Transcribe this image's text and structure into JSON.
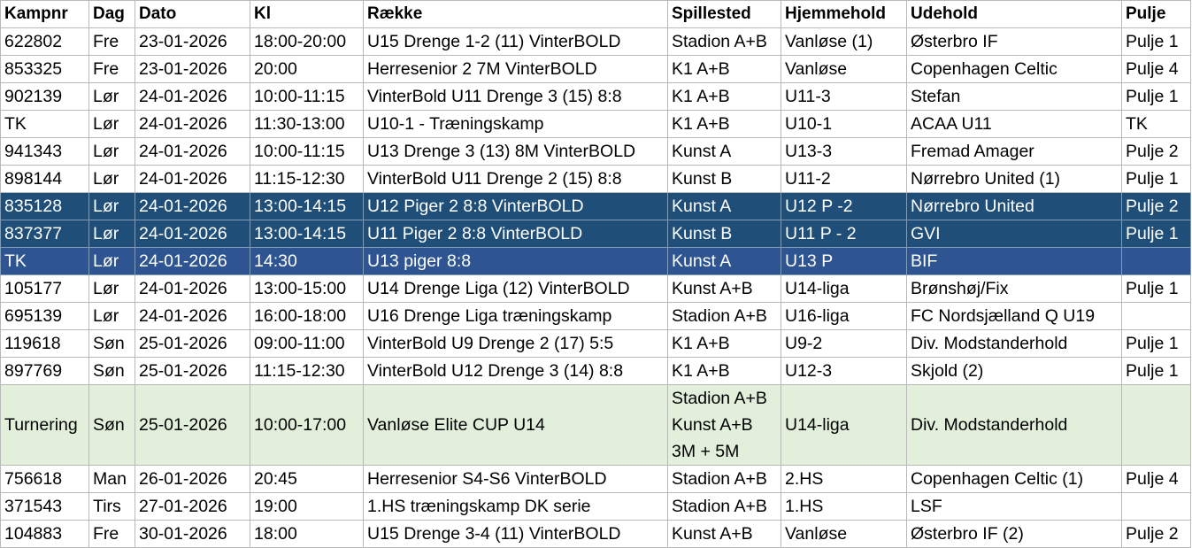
{
  "columns": [
    "Kampnr",
    "Dag",
    "Dato",
    "Kl",
    "Række",
    "Spillested",
    "Hjemmehold",
    "Udehold",
    "Pulje"
  ],
  "rows": [
    {
      "kampnr": "622802",
      "dag": "Fre",
      "dato": "23-01-2026",
      "kl": "18:00-20:00",
      "raekke": "U15 Drenge 1-2 (11) VinterBOLD",
      "spillested": [
        "Stadion A+B"
      ],
      "hjemmehold": "Vanløse (1)",
      "udehold": "Østerbro IF",
      "pulje": "Pulje 1",
      "style": ""
    },
    {
      "kampnr": "853325",
      "dag": "Fre",
      "dato": "23-01-2026",
      "kl": "20:00",
      "raekke": "Herresenior 2 7M VinterBOLD",
      "spillested": [
        "K1 A+B"
      ],
      "hjemmehold": "Vanløse",
      "udehold": "Copenhagen Celtic",
      "pulje": "Pulje 4",
      "style": ""
    },
    {
      "kampnr": "902139",
      "dag": "Lør",
      "dato": "24-01-2026",
      "kl": "10:00-11:15",
      "raekke": "VinterBold U11 Drenge 3 (15) 8:8",
      "spillested": [
        "K1 A+B"
      ],
      "hjemmehold": "U11-3",
      "udehold": "Stefan",
      "pulje": "Pulje 1",
      "style": ""
    },
    {
      "kampnr": "TK",
      "dag": "Lør",
      "dato": "24-01-2026",
      "kl": "11:30-13:00",
      "raekke": "U10-1 - Træningskamp",
      "spillested": [
        "K1 A+B"
      ],
      "hjemmehold": "U10-1",
      "udehold": "ACAA U11",
      "pulje": "TK",
      "style": ""
    },
    {
      "kampnr": "941343",
      "dag": "Lør",
      "dato": "24-01-2026",
      "kl": "10:00-11:15",
      "raekke": "U13 Drenge 3 (13) 8M VinterBOLD",
      "spillested": [
        "Kunst A"
      ],
      "hjemmehold": "U13-3",
      "udehold": "Fremad Amager",
      "pulje": "Pulje 2",
      "style": ""
    },
    {
      "kampnr": "898144",
      "dag": "Lør",
      "dato": "24-01-2026",
      "kl": "11:15-12:30",
      "raekke": "VinterBold U11 Drenge 2 (15) 8:8",
      "spillested": [
        "Kunst B"
      ],
      "hjemmehold": "U11-2",
      "udehold": "Nørrebro United (1)",
      "pulje": "Pulje 1",
      "style": ""
    },
    {
      "kampnr": "835128",
      "dag": "Lør",
      "dato": "24-01-2026",
      "kl": "13:00-14:15",
      "raekke": "U12 Piger 2 8:8 VinterBOLD",
      "spillested": [
        "Kunst A"
      ],
      "hjemmehold": "U12 P -2",
      "udehold": "Nørrebro United",
      "pulje": "Pulje 2",
      "style": "hl-dark"
    },
    {
      "kampnr": "837377",
      "dag": "Lør",
      "dato": "24-01-2026",
      "kl": "13:00-14:15",
      "raekke": "U11 Piger 2 8:8 VinterBOLD",
      "spillested": [
        "Kunst B"
      ],
      "hjemmehold": "U11 P - 2",
      "udehold": "GVI",
      "pulje": "Pulje 1",
      "style": "hl-dark"
    },
    {
      "kampnr": "TK",
      "dag": "Lør",
      "dato": "24-01-2026",
      "kl": "14:30",
      "raekke": "U13 piger 8:8",
      "spillested": [
        "Kunst A"
      ],
      "hjemmehold": "U13 P",
      "udehold": "BIF",
      "pulje": "",
      "style": "hl-mid"
    },
    {
      "kampnr": "105177",
      "dag": "Lør",
      "dato": "24-01-2026",
      "kl": "13:00-15:00",
      "raekke": "U14 Drenge Liga (12) VinterBOLD",
      "spillested": [
        "Kunst A+B"
      ],
      "hjemmehold": "U14-liga",
      "udehold": "Brønshøj/Fix",
      "pulje": "Pulje 1",
      "style": ""
    },
    {
      "kampnr": "695139",
      "dag": "Lør",
      "dato": "24-01-2026",
      "kl": "16:00-18:00",
      "raekke": "U16 Drenge Liga træningskamp",
      "spillested": [
        "Stadion A+B"
      ],
      "hjemmehold": "U16-liga",
      "udehold": "FC Nordsjælland Q U19",
      "pulje": "",
      "style": ""
    },
    {
      "kampnr": "119618",
      "dag": "Søn",
      "dato": "25-01-2026",
      "kl": "09:00-11:00",
      "raekke": "VinterBold U9 Drenge 2 (17) 5:5",
      "spillested": [
        "K1 A+B"
      ],
      "hjemmehold": "U9-2",
      "udehold": "Div. Modstanderhold",
      "pulje": "Pulje 1",
      "style": ""
    },
    {
      "kampnr": "897769",
      "dag": "Søn",
      "dato": "25-01-2026",
      "kl": "11:15-12:30",
      "raekke": "VinterBold U12 Drenge 3 (14) 8:8",
      "spillested": [
        "K1 A+B"
      ],
      "hjemmehold": "U12-3",
      "udehold": "Skjold (2)",
      "pulje": "Pulje 1",
      "style": ""
    },
    {
      "kampnr": "Turnering",
      "dag": "Søn",
      "dato": "25-01-2026",
      "kl": "10:00-17:00",
      "raekke": "Vanløse Elite CUP U14",
      "spillested": [
        "Stadion A+B",
        "Kunst A+B",
        "3M + 5M"
      ],
      "hjemmehold": "U14-liga",
      "udehold": "Div. Modstanderhold",
      "pulje": "",
      "style": "hl-green"
    },
    {
      "kampnr": "756618",
      "dag": "Man",
      "dato": "26-01-2026",
      "kl": "20:45",
      "raekke": "Herresenior S4-S6 VinterBOLD",
      "spillested": [
        "Stadion A+B"
      ],
      "hjemmehold": "2.HS",
      "udehold": "Copenhagen Celtic (1)",
      "pulje": "Pulje 4",
      "style": ""
    },
    {
      "kampnr": "371543",
      "dag": "Tirs",
      "dato": "27-01-2026",
      "kl": "19:00",
      "raekke": "1.HS træningskamp DK serie",
      "spillested": [
        "Stadion A+B"
      ],
      "hjemmehold": "1.HS",
      "udehold": "LSF",
      "pulje": "",
      "style": ""
    },
    {
      "kampnr": "104883",
      "dag": "Fre",
      "dato": "30-01-2026",
      "kl": "18:00",
      "raekke": "U15 Drenge 3-4 (11) VinterBOLD",
      "spillested": [
        "Kunst A+B"
      ],
      "hjemmehold": "Vanløse",
      "udehold": "Østerbro IF (2)",
      "pulje": "Pulje 2",
      "style": ""
    }
  ]
}
